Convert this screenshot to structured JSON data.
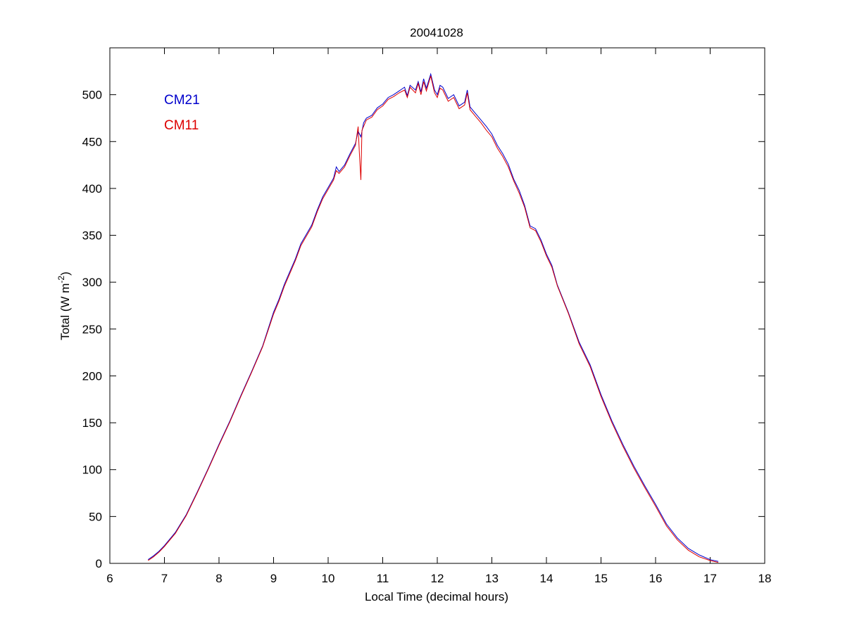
{
  "chart_data": {
    "type": "line",
    "title": "20041028",
    "xlabel": "Local Time (decimal hours)",
    "ylabel": "Total (W m",
    "ylabel_sup": "-2",
    "ylabel_tail": ")",
    "xlim": [
      6,
      18
    ],
    "ylim": [
      0,
      550
    ],
    "xticks": [
      "6",
      "7",
      "8",
      "9",
      "10",
      "11",
      "12",
      "13",
      "14",
      "15",
      "16",
      "17",
      "18"
    ],
    "yticks": [
      "0",
      "50",
      "100",
      "150",
      "200",
      "250",
      "300",
      "350",
      "400",
      "450",
      "500"
    ],
    "grid": false,
    "legend_position": "top-left",
    "series": [
      {
        "name": "CM21",
        "color": "#0000cc",
        "points": [
          [
            6.7,
            4
          ],
          [
            6.8,
            8
          ],
          [
            6.9,
            13
          ],
          [
            7.0,
            19
          ],
          [
            7.2,
            33
          ],
          [
            7.4,
            52
          ],
          [
            7.6,
            76
          ],
          [
            7.8,
            101
          ],
          [
            8.0,
            127
          ],
          [
            8.2,
            152
          ],
          [
            8.4,
            179
          ],
          [
            8.6,
            205
          ],
          [
            8.8,
            232
          ],
          [
            9.0,
            268
          ],
          [
            9.1,
            282
          ],
          [
            9.2,
            298
          ],
          [
            9.4,
            325
          ],
          [
            9.5,
            341
          ],
          [
            9.6,
            351
          ],
          [
            9.7,
            361
          ],
          [
            9.8,
            377
          ],
          [
            9.9,
            391
          ],
          [
            10.0,
            401
          ],
          [
            10.1,
            411
          ],
          [
            10.15,
            423
          ],
          [
            10.2,
            418
          ],
          [
            10.3,
            425
          ],
          [
            10.4,
            437
          ],
          [
            10.5,
            448
          ],
          [
            10.55,
            461
          ],
          [
            10.6,
            455
          ],
          [
            10.65,
            470
          ],
          [
            10.7,
            475
          ],
          [
            10.8,
            478
          ],
          [
            10.9,
            486
          ],
          [
            11.0,
            490
          ],
          [
            11.1,
            497
          ],
          [
            11.2,
            500
          ],
          [
            11.3,
            504
          ],
          [
            11.4,
            508
          ],
          [
            11.45,
            499
          ],
          [
            11.5,
            510
          ],
          [
            11.6,
            505
          ],
          [
            11.65,
            514
          ],
          [
            11.7,
            503
          ],
          [
            11.75,
            517
          ],
          [
            11.8,
            507
          ],
          [
            11.88,
            522
          ],
          [
            11.95,
            505
          ],
          [
            12.0,
            500
          ],
          [
            12.05,
            510
          ],
          [
            12.1,
            508
          ],
          [
            12.2,
            496
          ],
          [
            12.3,
            500
          ],
          [
            12.4,
            488
          ],
          [
            12.5,
            492
          ],
          [
            12.55,
            505
          ],
          [
            12.6,
            487
          ],
          [
            12.7,
            480
          ],
          [
            12.8,
            473
          ],
          [
            12.9,
            466
          ],
          [
            13.0,
            458
          ],
          [
            13.1,
            446
          ],
          [
            13.2,
            437
          ],
          [
            13.3,
            426
          ],
          [
            13.4,
            410
          ],
          [
            13.5,
            398
          ],
          [
            13.6,
            382
          ],
          [
            13.7,
            360
          ],
          [
            13.8,
            357
          ],
          [
            13.9,
            345
          ],
          [
            14.0,
            330
          ],
          [
            14.1,
            318
          ],
          [
            14.2,
            297
          ],
          [
            14.4,
            268
          ],
          [
            14.6,
            236
          ],
          [
            14.8,
            212
          ],
          [
            15.0,
            180
          ],
          [
            15.2,
            152
          ],
          [
            15.4,
            127
          ],
          [
            15.6,
            104
          ],
          [
            15.8,
            83
          ],
          [
            16.0,
            63
          ],
          [
            16.2,
            42
          ],
          [
            16.4,
            27
          ],
          [
            16.6,
            16
          ],
          [
            16.8,
            9
          ],
          [
            17.0,
            4
          ],
          [
            17.15,
            2
          ]
        ]
      },
      {
        "name": "CM11",
        "color": "#dd0000",
        "points": [
          [
            6.7,
            3
          ],
          [
            6.8,
            7
          ],
          [
            6.9,
            12
          ],
          [
            7.0,
            18
          ],
          [
            7.2,
            32
          ],
          [
            7.4,
            51
          ],
          [
            7.6,
            75
          ],
          [
            7.8,
            100
          ],
          [
            8.0,
            126
          ],
          [
            8.2,
            151
          ],
          [
            8.4,
            178
          ],
          [
            8.6,
            204
          ],
          [
            8.8,
            231
          ],
          [
            9.0,
            266
          ],
          [
            9.1,
            280
          ],
          [
            9.2,
            296
          ],
          [
            9.4,
            323
          ],
          [
            9.5,
            339
          ],
          [
            9.6,
            349
          ],
          [
            9.7,
            359
          ],
          [
            9.8,
            375
          ],
          [
            9.9,
            389
          ],
          [
            10.0,
            399
          ],
          [
            10.1,
            409
          ],
          [
            10.15,
            419
          ],
          [
            10.2,
            416
          ],
          [
            10.3,
            423
          ],
          [
            10.4,
            435
          ],
          [
            10.5,
            446
          ],
          [
            10.55,
            466
          ],
          [
            10.57,
            440
          ],
          [
            10.6,
            409
          ],
          [
            10.62,
            462
          ],
          [
            10.7,
            473
          ],
          [
            10.8,
            476
          ],
          [
            10.9,
            484
          ],
          [
            11.0,
            488
          ],
          [
            11.1,
            495
          ],
          [
            11.2,
            498
          ],
          [
            11.3,
            502
          ],
          [
            11.4,
            505
          ],
          [
            11.45,
            497
          ],
          [
            11.5,
            508
          ],
          [
            11.6,
            502
          ],
          [
            11.65,
            512
          ],
          [
            11.7,
            500
          ],
          [
            11.75,
            514
          ],
          [
            11.8,
            504
          ],
          [
            11.88,
            520
          ],
          [
            11.95,
            502
          ],
          [
            12.0,
            497
          ],
          [
            12.05,
            507
          ],
          [
            12.1,
            505
          ],
          [
            12.2,
            493
          ],
          [
            12.3,
            497
          ],
          [
            12.4,
            485
          ],
          [
            12.5,
            489
          ],
          [
            12.55,
            502
          ],
          [
            12.6,
            484
          ],
          [
            12.7,
            477
          ],
          [
            12.8,
            470
          ],
          [
            12.9,
            462
          ],
          [
            13.0,
            455
          ],
          [
            13.1,
            443
          ],
          [
            13.2,
            434
          ],
          [
            13.3,
            423
          ],
          [
            13.4,
            408
          ],
          [
            13.5,
            395
          ],
          [
            13.6,
            380
          ],
          [
            13.7,
            358
          ],
          [
            13.8,
            355
          ],
          [
            13.9,
            343
          ],
          [
            14.0,
            328
          ],
          [
            14.1,
            316
          ],
          [
            14.2,
            296
          ],
          [
            14.4,
            267
          ],
          [
            14.6,
            234
          ],
          [
            14.8,
            210
          ],
          [
            15.0,
            178
          ],
          [
            15.2,
            150
          ],
          [
            15.4,
            125
          ],
          [
            15.6,
            102
          ],
          [
            15.8,
            81
          ],
          [
            16.0,
            61
          ],
          [
            16.2,
            40
          ],
          [
            16.4,
            25
          ],
          [
            16.6,
            14
          ],
          [
            16.8,
            7
          ],
          [
            17.0,
            3
          ],
          [
            17.15,
            1
          ]
        ]
      }
    ]
  }
}
